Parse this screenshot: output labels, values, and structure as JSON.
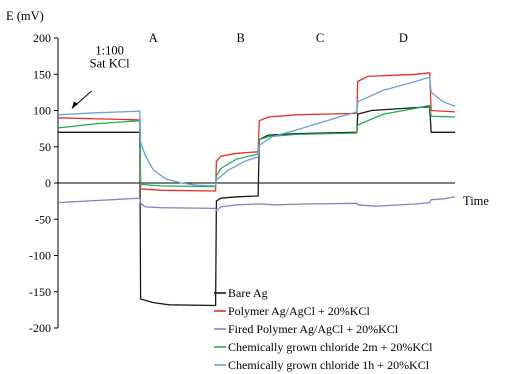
{
  "chart_data": {
    "type": "line",
    "ylabel": "E (mV)",
    "xlabel": "Time",
    "ylim": [
      -200,
      200
    ],
    "yticks": [
      -200,
      -150,
      -100,
      -50,
      0,
      50,
      100,
      150,
      200
    ],
    "xlim": [
      0,
      100
    ],
    "grid": false,
    "legend_position": "bottom-right",
    "annotations": [
      {
        "text": "1:100",
        "x": 13,
        "y": 183
      },
      {
        "text": "Sat KCl",
        "x": 13,
        "y": 165
      },
      {
        "text": "A",
        "x": 24,
        "y": 200
      },
      {
        "text": "B",
        "x": 46,
        "y": 200
      },
      {
        "text": "C",
        "x": 66,
        "y": 200
      },
      {
        "text": "D",
        "x": 87,
        "y": 200
      }
    ],
    "series": [
      {
        "name": "Bare Ag",
        "color": "#1a1a1a",
        "points": [
          [
            0,
            70
          ],
          [
            20.6,
            70
          ],
          [
            20.8,
            -160
          ],
          [
            24,
            -165
          ],
          [
            28,
            -168
          ],
          [
            39.7,
            -169
          ],
          [
            39.9,
            -25
          ],
          [
            41,
            -21
          ],
          [
            45,
            -19
          ],
          [
            50.4,
            -18
          ],
          [
            50.7,
            60
          ],
          [
            53,
            66
          ],
          [
            60,
            68
          ],
          [
            75.3,
            70
          ],
          [
            75.5,
            95
          ],
          [
            79,
            100
          ],
          [
            90,
            104
          ],
          [
            93.6,
            105
          ],
          [
            94,
            70
          ],
          [
            100,
            70
          ]
        ]
      },
      {
        "name": "Polymer Ag/AgCl + 20%KCl",
        "color": "#e8302c",
        "points": [
          [
            0,
            90
          ],
          [
            20.6,
            87
          ],
          [
            20.8,
            -8
          ],
          [
            26,
            -10
          ],
          [
            39.7,
            -11
          ],
          [
            39.9,
            30
          ],
          [
            41,
            37
          ],
          [
            45,
            41
          ],
          [
            50.4,
            43
          ],
          [
            50.7,
            86
          ],
          [
            53,
            91
          ],
          [
            60,
            94
          ],
          [
            75.3,
            96
          ],
          [
            75.5,
            140
          ],
          [
            78,
            147
          ],
          [
            90,
            150
          ],
          [
            93.6,
            152
          ],
          [
            94,
            100
          ],
          [
            100,
            98
          ]
        ]
      },
      {
        "name": "Fired Polymer Ag/AgCl + 20%KCl",
        "color": "#8a80c8",
        "points": [
          [
            0,
            -27
          ],
          [
            20.6,
            -21
          ],
          [
            20.8,
            -28
          ],
          [
            22,
            -33
          ],
          [
            26,
            -34
          ],
          [
            39.7,
            -35
          ],
          [
            39.9,
            -38
          ],
          [
            41,
            -33
          ],
          [
            45,
            -30
          ],
          [
            50.4,
            -29
          ],
          [
            50.7,
            -29
          ],
          [
            55,
            -30
          ],
          [
            62,
            -29
          ],
          [
            75.3,
            -28
          ],
          [
            75.5,
            -30
          ],
          [
            80,
            -32
          ],
          [
            90,
            -29
          ],
          [
            93.6,
            -27
          ],
          [
            94,
            -23
          ],
          [
            97,
            -22
          ],
          [
            100,
            -19
          ]
        ]
      },
      {
        "name": "Chemically grown chloride 2m + 20%KCl",
        "color": "#22b050",
        "points": [
          [
            0,
            76
          ],
          [
            10,
            82
          ],
          [
            20.6,
            86
          ],
          [
            20.8,
            -2
          ],
          [
            26,
            -4
          ],
          [
            39.7,
            -5
          ],
          [
            39.9,
            10
          ],
          [
            41,
            20
          ],
          [
            45,
            33
          ],
          [
            50.4,
            40
          ],
          [
            50.7,
            60
          ],
          [
            53,
            64
          ],
          [
            60,
            67
          ],
          [
            75.3,
            69
          ],
          [
            75.5,
            80
          ],
          [
            82,
            95
          ],
          [
            90,
            103
          ],
          [
            93.6,
            107
          ],
          [
            94,
            92
          ],
          [
            100,
            91
          ]
        ]
      },
      {
        "name": "Chemically grown chloride 1h + 20%KCl",
        "color": "#6a9fd8",
        "points": [
          [
            0,
            94
          ],
          [
            10,
            97
          ],
          [
            20.6,
            99
          ],
          [
            20.8,
            56
          ],
          [
            22,
            38
          ],
          [
            24,
            18
          ],
          [
            27,
            6
          ],
          [
            31,
            0
          ],
          [
            35,
            -3
          ],
          [
            39.7,
            -4
          ],
          [
            39.9,
            4
          ],
          [
            43,
            18
          ],
          [
            47,
            30
          ],
          [
            50.4,
            36
          ],
          [
            50.7,
            52
          ],
          [
            54,
            64
          ],
          [
            60,
            73
          ],
          [
            66,
            83
          ],
          [
            72,
            93
          ],
          [
            75.3,
            98
          ],
          [
            75.5,
            112
          ],
          [
            82,
            128
          ],
          [
            88,
            137
          ],
          [
            93.6,
            146
          ],
          [
            94,
            125
          ],
          [
            97,
            112
          ],
          [
            100,
            106
          ]
        ]
      }
    ]
  }
}
